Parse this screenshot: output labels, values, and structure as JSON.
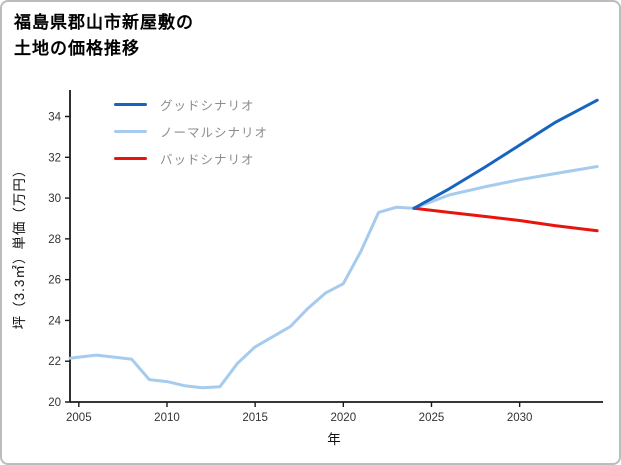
{
  "page": {
    "title_line1": "福島県郡山市新屋敷の",
    "title_line2": "土地の価格推移"
  },
  "colors": {
    "border": "#bcbcbc",
    "axis": "#1a1a1a",
    "tick_text": "#333333",
    "legend_text": "#8c8c8c"
  },
  "chart_data": {
    "type": "line",
    "title": "福島県郡山市新屋敷の土地の価格推移",
    "xlabel": "年",
    "ylabel": "坪（3.3㎡）単価（万円）",
    "xlim": [
      2004.5,
      2034.5
    ],
    "ylim": [
      20,
      35.3
    ],
    "xticks": [
      2005,
      2010,
      2015,
      2020,
      2025,
      2030
    ],
    "yticks": [
      20,
      22,
      24,
      26,
      28,
      30,
      32,
      34
    ],
    "grid": false,
    "legend_position": "upper-left",
    "draw_order": [
      1,
      2,
      0
    ],
    "series": [
      {
        "id": "good",
        "name": "グッドシナリオ",
        "color": "#1565c0",
        "width": 3,
        "x": [
          2024,
          2026,
          2028,
          2030,
          2032,
          2034.4
        ],
        "y": [
          29.5,
          30.45,
          31.5,
          32.6,
          33.7,
          34.8
        ]
      },
      {
        "id": "normal",
        "name": "ノーマルシナリオ",
        "color": "#a6cbee",
        "width": 3,
        "x": [
          2004.5,
          2005,
          2006,
          2007,
          2008,
          2009,
          2010,
          2011,
          2012,
          2013,
          2014,
          2015,
          2016,
          2017,
          2018,
          2019,
          2020,
          2021,
          2022,
          2023,
          2024,
          2026,
          2028,
          2030,
          2032,
          2034.4
        ],
        "y": [
          22.15,
          22.2,
          22.3,
          22.2,
          22.1,
          21.1,
          21.0,
          20.8,
          20.7,
          20.75,
          21.9,
          22.7,
          23.2,
          23.7,
          24.6,
          25.35,
          25.8,
          27.4,
          29.3,
          29.55,
          29.5,
          30.15,
          30.55,
          30.9,
          31.2,
          31.55
        ]
      },
      {
        "id": "bad",
        "name": "バッドシナリオ",
        "color": "#e8150e",
        "width": 3,
        "x": [
          2024,
          2026,
          2028,
          2030,
          2032,
          2034.4
        ],
        "y": [
          29.5,
          29.3,
          29.1,
          28.9,
          28.65,
          28.4
        ]
      }
    ]
  }
}
